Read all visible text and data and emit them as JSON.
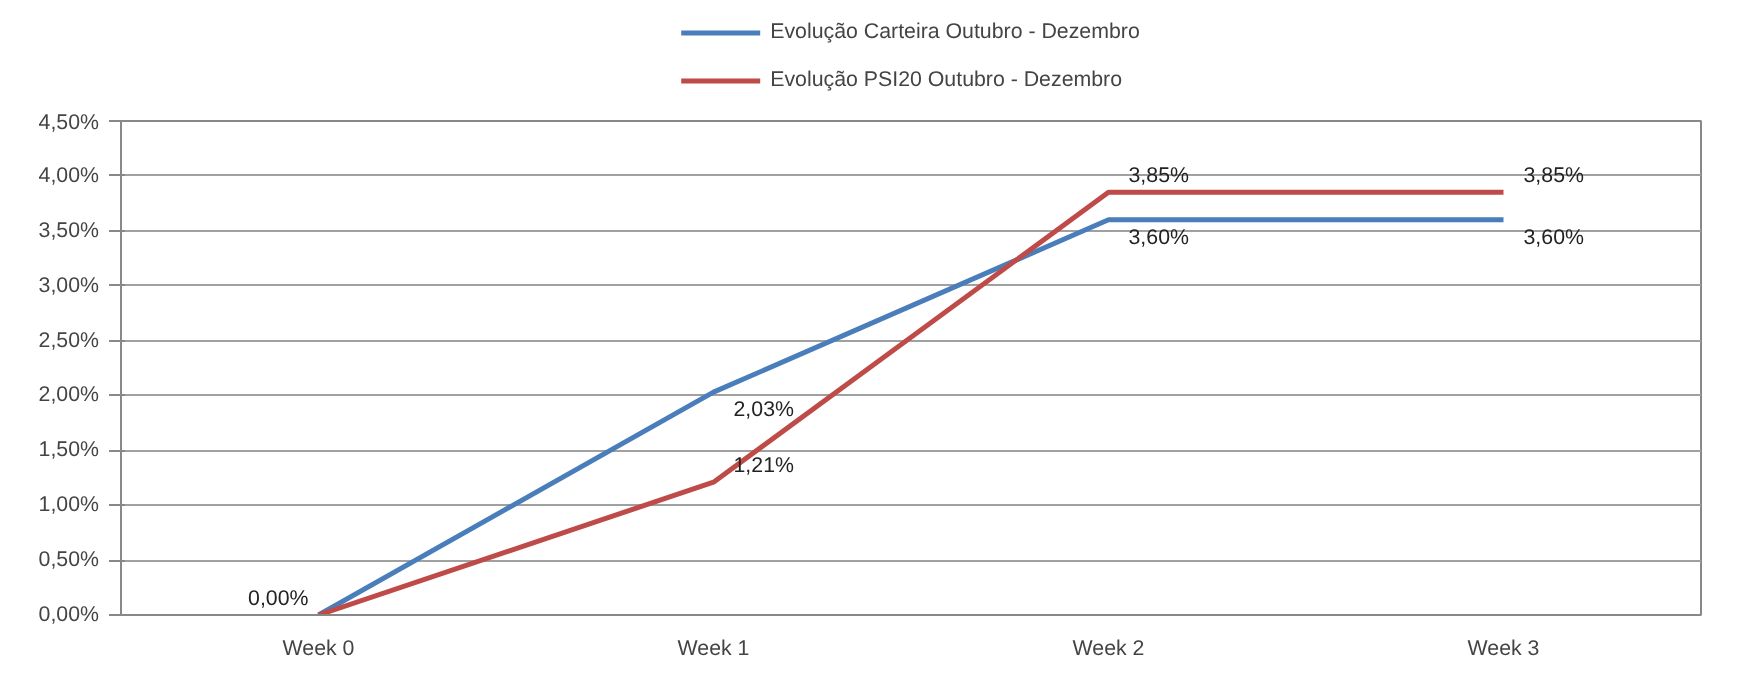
{
  "chart_data": {
    "type": "line",
    "categories": [
      "Week 0",
      "Week 1",
      "Week 2",
      "Week 3"
    ],
    "series": [
      {
        "name": "Evolução Carteira Outubro - Dezembro",
        "color": "#4a7ebb",
        "values": [
          0,
          2.03,
          3.6,
          3.6
        ],
        "value_labels": [
          "0,00%",
          "2,03%",
          "3,60%",
          "3,60%"
        ]
      },
      {
        "name": "Evolução PSI20 Outubro - Dezembro",
        "color": "#be4b48",
        "values": [
          0,
          1.21,
          3.85,
          3.85
        ],
        "value_labels": [
          null,
          "1,21%",
          "3,85%",
          "3,85%"
        ]
      }
    ],
    "ylim": [
      0,
      4.5
    ],
    "yticks": [
      {
        "value": 0,
        "label": "0,00%"
      },
      {
        "value": 0.5,
        "label": "0,50%"
      },
      {
        "value": 1,
        "label": "1,00%"
      },
      {
        "value": 1.5,
        "label": "1,50%"
      },
      {
        "value": 2,
        "label": "2,00%"
      },
      {
        "value": 2.5,
        "label": "2,50%"
      },
      {
        "value": 3,
        "label": "3,00%"
      },
      {
        "value": 3.5,
        "label": "3,50%"
      },
      {
        "value": 4,
        "label": "4,00%"
      },
      {
        "value": 4.5,
        "label": "4,50%"
      }
    ],
    "grid": "y",
    "legend": "top",
    "marker": "none",
    "line_style": "solid"
  }
}
